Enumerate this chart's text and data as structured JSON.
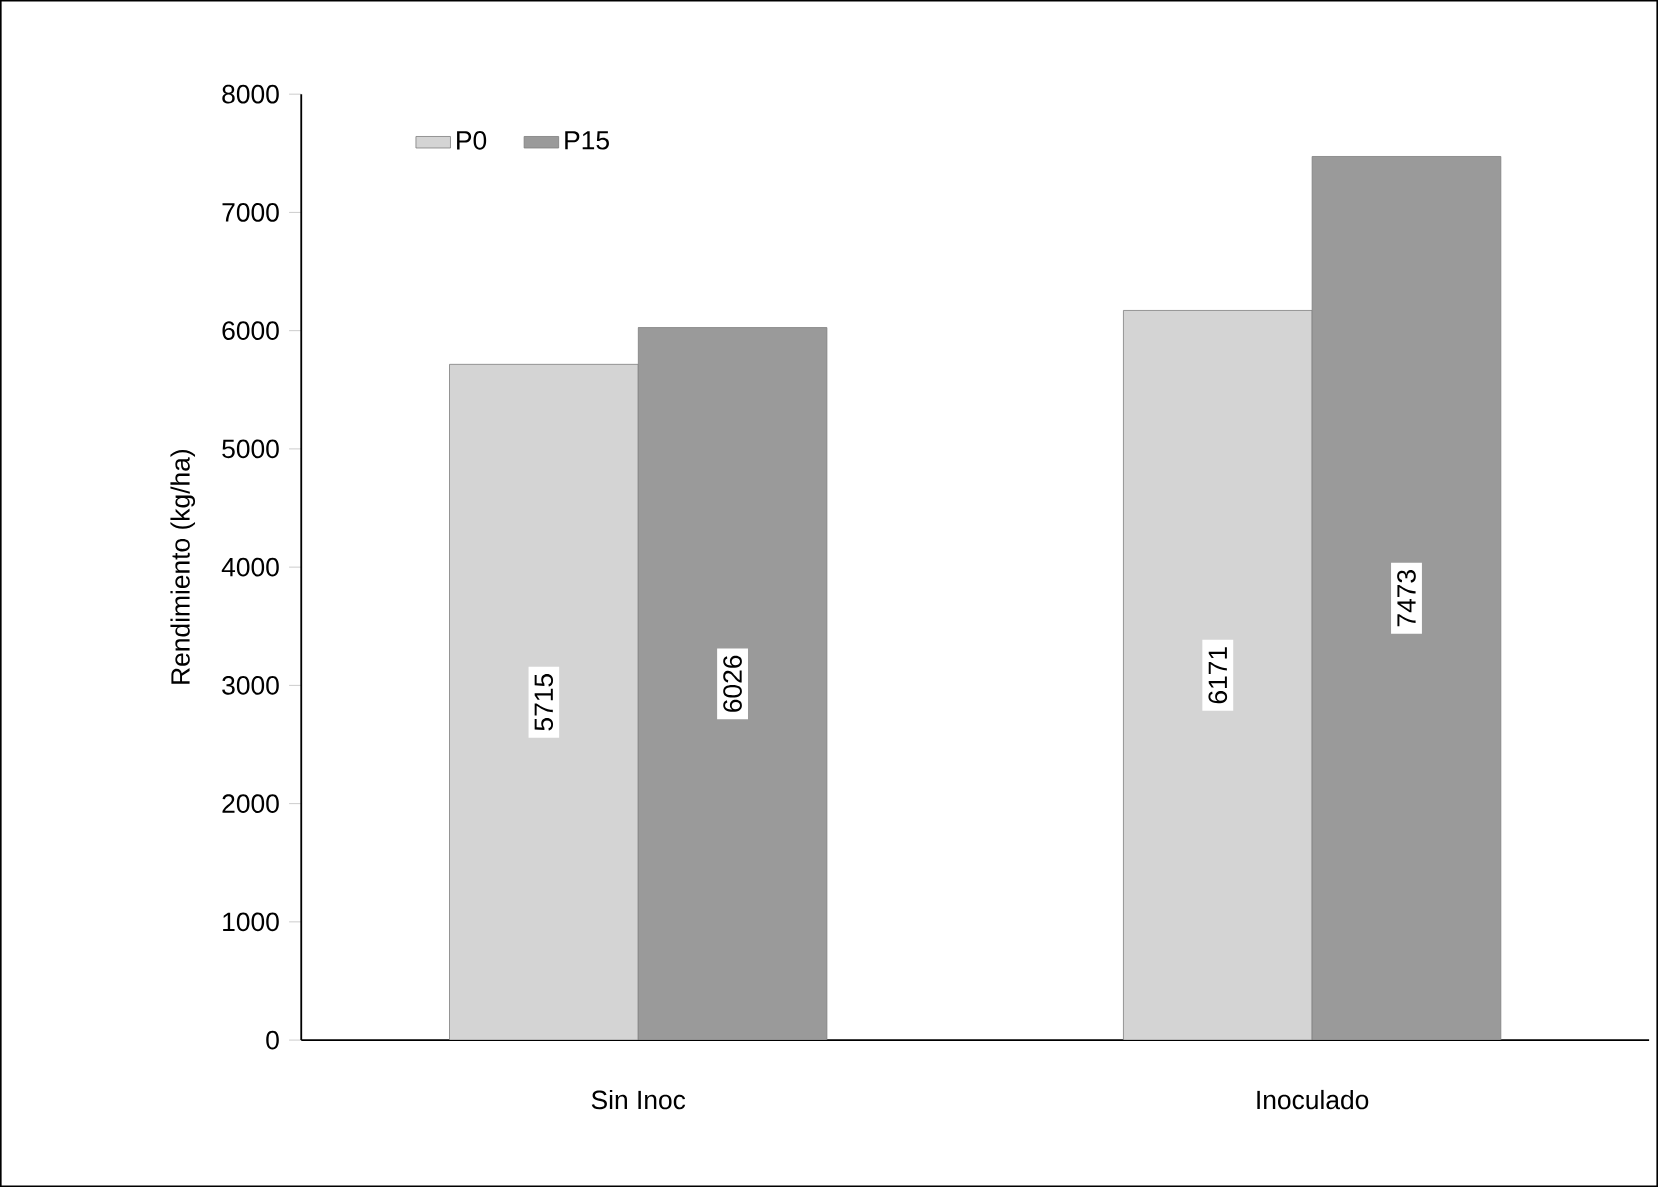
{
  "chart_data": {
    "type": "bar",
    "ylabel": "Rendimiento (kg/ha)",
    "categories": [
      "Sin Inoc",
      "Inoculado"
    ],
    "series": [
      {
        "name": "P0",
        "color": "#d4d4d4",
        "values": [
          5715,
          6171
        ]
      },
      {
        "name": "P15",
        "color": "#9a9a9a",
        "values": [
          6026,
          7473
        ]
      }
    ],
    "ylim": [
      0,
      8000
    ],
    "yticks": [
      0,
      1000,
      2000,
      3000,
      4000,
      5000,
      6000,
      7000,
      8000
    ],
    "legend": "top left",
    "data_labels": true
  }
}
